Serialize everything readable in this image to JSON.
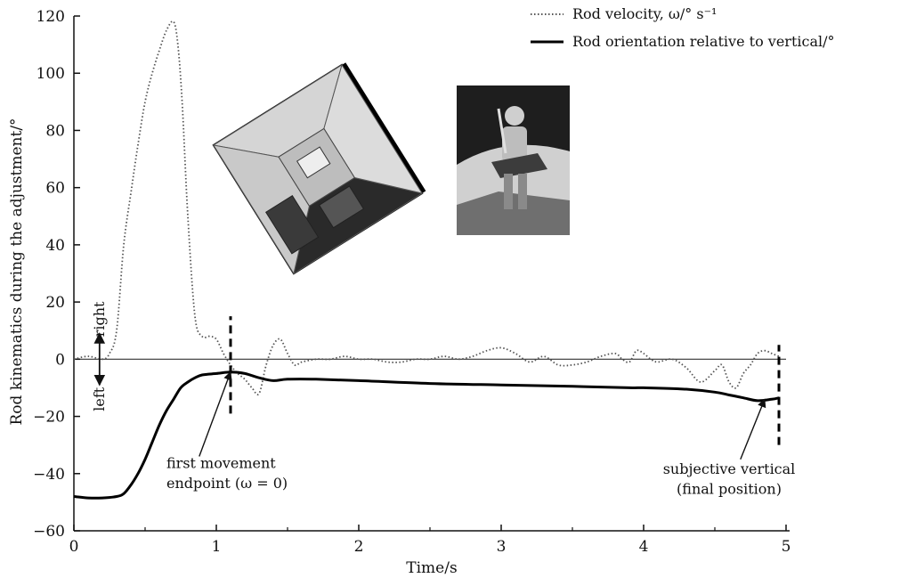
{
  "chart_data": {
    "type": "line",
    "xlabel": "Time/s",
    "ylabel": "Rod kinematics during the adjustment/°",
    "xlim": [
      0,
      5
    ],
    "ylim": [
      -60,
      120
    ],
    "xticks": [
      0,
      1,
      2,
      3,
      4,
      5
    ],
    "yticks": [
      -60,
      -40,
      -20,
      0,
      20,
      40,
      60,
      80,
      100,
      120
    ],
    "xtick_labels": [
      "0",
      "1",
      "2",
      "3",
      "4",
      "5"
    ],
    "ytick_labels": [
      "−60",
      "−40",
      "−20",
      "0",
      "20",
      "40",
      "60",
      "80",
      "100",
      "120"
    ],
    "grid": false,
    "legend_position": "top-right",
    "series": [
      {
        "name": "Rod velocity, ω/° s⁻¹",
        "style": "dotted",
        "color": "#555555",
        "x": [
          0.0,
          0.1,
          0.2,
          0.25,
          0.3,
          0.35,
          0.4,
          0.45,
          0.5,
          0.55,
          0.6,
          0.65,
          0.7,
          0.73,
          0.76,
          0.8,
          0.85,
          0.9,
          0.95,
          1.0,
          1.05,
          1.1,
          1.15,
          1.2,
          1.25,
          1.3,
          1.35,
          1.4,
          1.45,
          1.5,
          1.55,
          1.6,
          1.7,
          1.8,
          1.9,
          2.0,
          2.1,
          2.2,
          2.3,
          2.4,
          2.5,
          2.6,
          2.7,
          2.8,
          2.9,
          3.0,
          3.1,
          3.2,
          3.3,
          3.4,
          3.5,
          3.6,
          3.7,
          3.8,
          3.85,
          3.9,
          3.95,
          4.0,
          4.05,
          4.1,
          4.2,
          4.3,
          4.4,
          4.5,
          4.55,
          4.6,
          4.65,
          4.7,
          4.75,
          4.8,
          4.85,
          4.9,
          4.95
        ],
        "y": [
          0,
          1,
          0,
          2,
          10,
          40,
          58,
          75,
          90,
          100,
          108,
          115,
          118,
          110,
          90,
          50,
          15,
          8,
          8,
          7,
          2,
          -2,
          -5,
          -7,
          -10,
          -12,
          -2,
          5,
          7,
          2,
          -2,
          -1,
          0,
          0,
          1,
          0,
          0,
          -1,
          -1,
          0,
          0,
          1,
          0,
          1,
          3,
          4,
          2,
          -1,
          1,
          -2,
          -2,
          -1,
          1,
          2,
          0,
          -1,
          3,
          2,
          0,
          -1,
          0,
          -3,
          -8,
          -4,
          -2,
          -8,
          -10,
          -5,
          -2,
          2,
          3,
          2,
          1
        ]
      },
      {
        "name": "Rod orientation relative to vertical/°",
        "style": "solid",
        "color": "#000000",
        "x": [
          0.0,
          0.1,
          0.2,
          0.3,
          0.35,
          0.4,
          0.45,
          0.5,
          0.55,
          0.6,
          0.65,
          0.7,
          0.75,
          0.8,
          0.85,
          0.9,
          1.0,
          1.1,
          1.2,
          1.3,
          1.4,
          1.5,
          1.7,
          2.0,
          2.5,
          3.0,
          3.5,
          3.9,
          4.0,
          4.3,
          4.5,
          4.6,
          4.7,
          4.8,
          4.9,
          4.95
        ],
        "y": [
          -48,
          -48.5,
          -48.5,
          -48,
          -47,
          -44,
          -40,
          -35,
          -29,
          -23,
          -18,
          -14,
          -10,
          -8,
          -6.5,
          -5.5,
          -5,
          -4.5,
          -5,
          -6.5,
          -7.5,
          -7,
          -7,
          -7.5,
          -8.5,
          -9,
          -9.5,
          -10,
          -10,
          -10.5,
          -11.5,
          -12.5,
          -13.5,
          -14.5,
          -14,
          -13.5
        ]
      }
    ],
    "annotations": [
      {
        "label": "right",
        "x": 0.18,
        "y": 14
      },
      {
        "label": "left",
        "x": 0.18,
        "y": -14
      },
      {
        "label": "first movement",
        "x": 0.65,
        "y": -38
      },
      {
        "label": "endpoint (ω = 0)",
        "x": 0.65,
        "y": -45
      },
      {
        "label": "subjective vertical",
        "x": 4.6,
        "y": -40
      },
      {
        "label": "(final position)",
        "x": 4.6,
        "y": -47
      }
    ],
    "markers": [
      {
        "name": "first-movement-endpoint",
        "x": 1.1,
        "y_from": -19,
        "y_to": 15
      },
      {
        "name": "final-position",
        "x": 4.95,
        "y_from": -30,
        "y_to": 5
      }
    ],
    "arrow_targets": [
      {
        "name": "first-movement-endpoint",
        "x": 1.1,
        "y": -4.5,
        "from_x": 0.88,
        "from_y": -34
      },
      {
        "name": "final-position",
        "x": 4.85,
        "y": -14,
        "from_x": 4.68,
        "from_y": -35
      }
    ]
  }
}
